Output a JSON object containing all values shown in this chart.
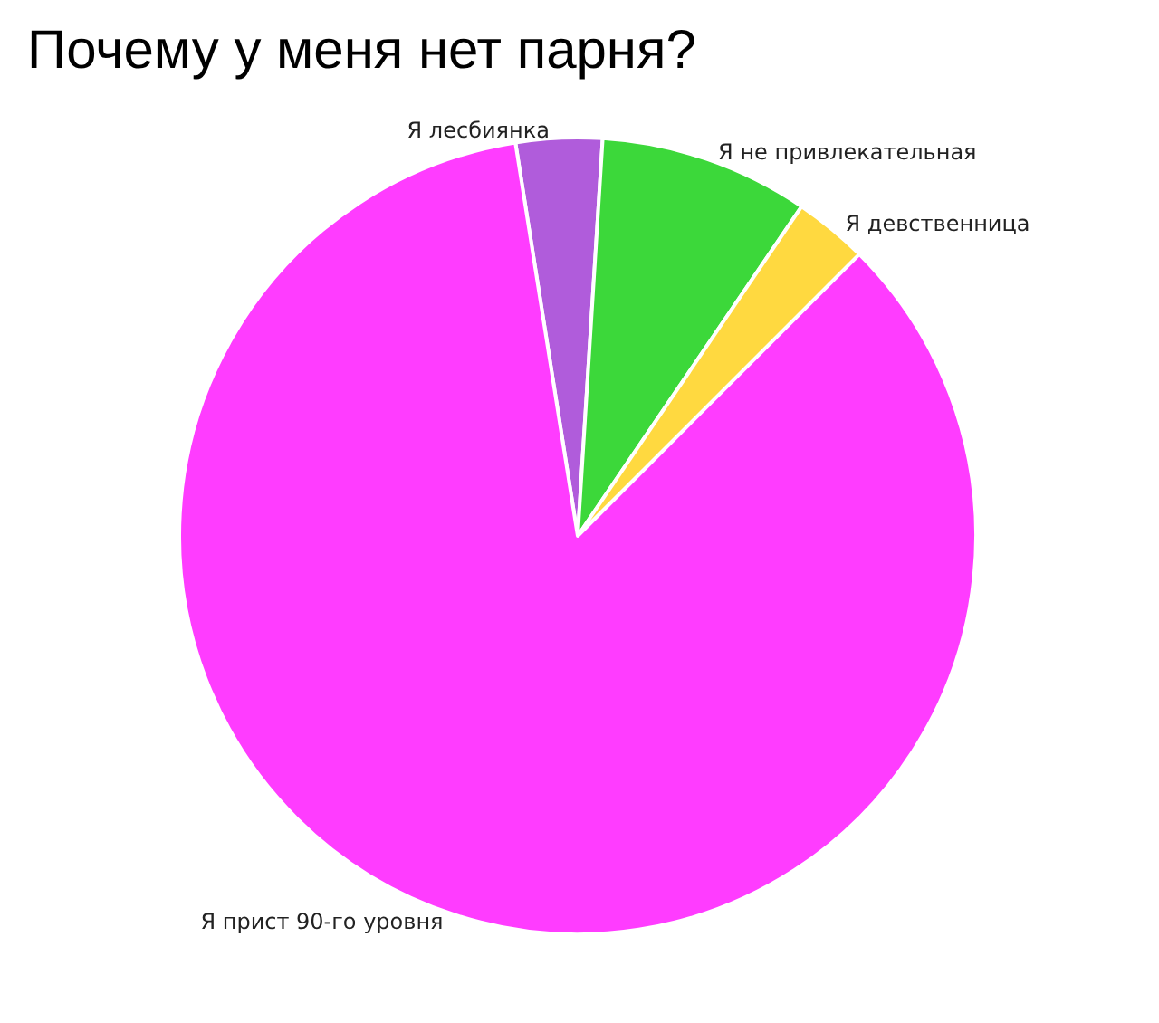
{
  "chart_data": {
    "type": "pie",
    "title": "Почему у меня нет парня?",
    "categories": [
      "Я лесбиянка",
      "Я не привлекательная",
      "Я девственница",
      "Я прист 90-го уровня"
    ],
    "values": [
      3.5,
      8.5,
      3,
      85
    ],
    "colors": [
      "#b05cdb",
      "#3cd83a",
      "#ffd940",
      "#ff3cff"
    ]
  }
}
